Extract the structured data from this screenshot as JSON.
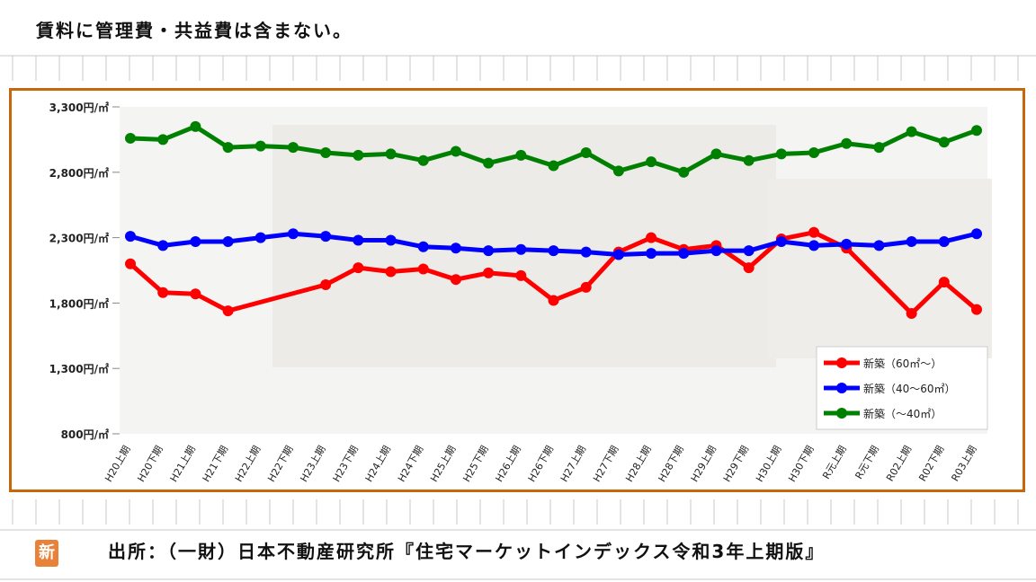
{
  "note": "賃料に管理費・共益費は含まない。",
  "source": "出所：（一財）日本不動産研究所『住宅マーケットインデックス令和3年上期版』",
  "badge": "新",
  "chart_data": {
    "type": "line",
    "title": "",
    "xlabel": "",
    "ylabel": "",
    "ylim": [
      800,
      3300
    ],
    "yticks": [
      800,
      1300,
      1800,
      2300,
      2800,
      3300
    ],
    "ytick_labels": [
      "800円/㎡",
      "1,300円/㎡",
      "1,800円/㎡",
      "2,300円/㎡",
      "2,800円/㎡",
      "3,300円/㎡"
    ],
    "categories": [
      "H20上期",
      "H20下期",
      "H21上期",
      "H21下期",
      "H22上期",
      "H22下期",
      "H23上期",
      "H23下期",
      "H24上期",
      "H24下期",
      "H25上期",
      "H25下期",
      "H26上期",
      "H26下期",
      "H27上期",
      "H27下期",
      "H28上期",
      "H28下期",
      "H29上期",
      "H29下期",
      "H30上期",
      "H30下期",
      "R元上期",
      "R元下期",
      "R02上期",
      "R02下期",
      "R03上期"
    ],
    "series": [
      {
        "name": "新築（60㎡～）",
        "color": "#ff0000",
        "values": [
          2100,
          1880,
          1870,
          1740,
          null,
          null,
          1940,
          2070,
          2040,
          2060,
          1980,
          2030,
          2010,
          1820,
          1920,
          2190,
          2300,
          2210,
          2240,
          2070,
          2290,
          2340,
          2220,
          null,
          1720,
          1960,
          1750
        ]
      },
      {
        "name": "新築（40～60㎡）",
        "color": "#0000ff",
        "values": [
          2310,
          2240,
          2270,
          2270,
          2300,
          2330,
          2310,
          2280,
          2280,
          2230,
          2220,
          2200,
          2210,
          2200,
          2190,
          2170,
          2180,
          2180,
          2200,
          2200,
          2270,
          2240,
          2250,
          2240,
          2270,
          2270,
          2330
        ]
      },
      {
        "name": "新築（～40㎡）",
        "color": "#008000",
        "values": [
          3060,
          3050,
          3150,
          2990,
          3000,
          2990,
          2950,
          2930,
          2940,
          2890,
          2960,
          2870,
          2930,
          2850,
          2950,
          2810,
          2880,
          2800,
          2940,
          2890,
          2940,
          2950,
          3020,
          2990,
          3110,
          3030,
          3120
        ]
      }
    ],
    "legend_position": "bottom-right",
    "grid": false
  }
}
